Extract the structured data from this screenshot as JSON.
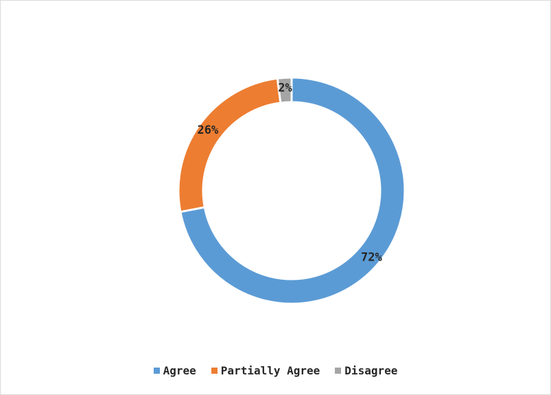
{
  "chart_data": {
    "type": "pie",
    "variant": "donut",
    "categories": [
      "Agree",
      "Partially Agree",
      "Disagree"
    ],
    "values": [
      72,
      26,
      2
    ],
    "data_labels": [
      "72%",
      "26%",
      "2%"
    ],
    "colors": [
      "#5b9bd5",
      "#ed7d31",
      "#a5a5a5"
    ],
    "legend_position": "bottom",
    "title": ""
  },
  "legend": {
    "items": [
      {
        "label": "Agree",
        "color": "#5b9bd5"
      },
      {
        "label": "Partially Agree",
        "color": "#ed7d31"
      },
      {
        "label": "Disagree",
        "color": "#a5a5a5"
      }
    ]
  }
}
